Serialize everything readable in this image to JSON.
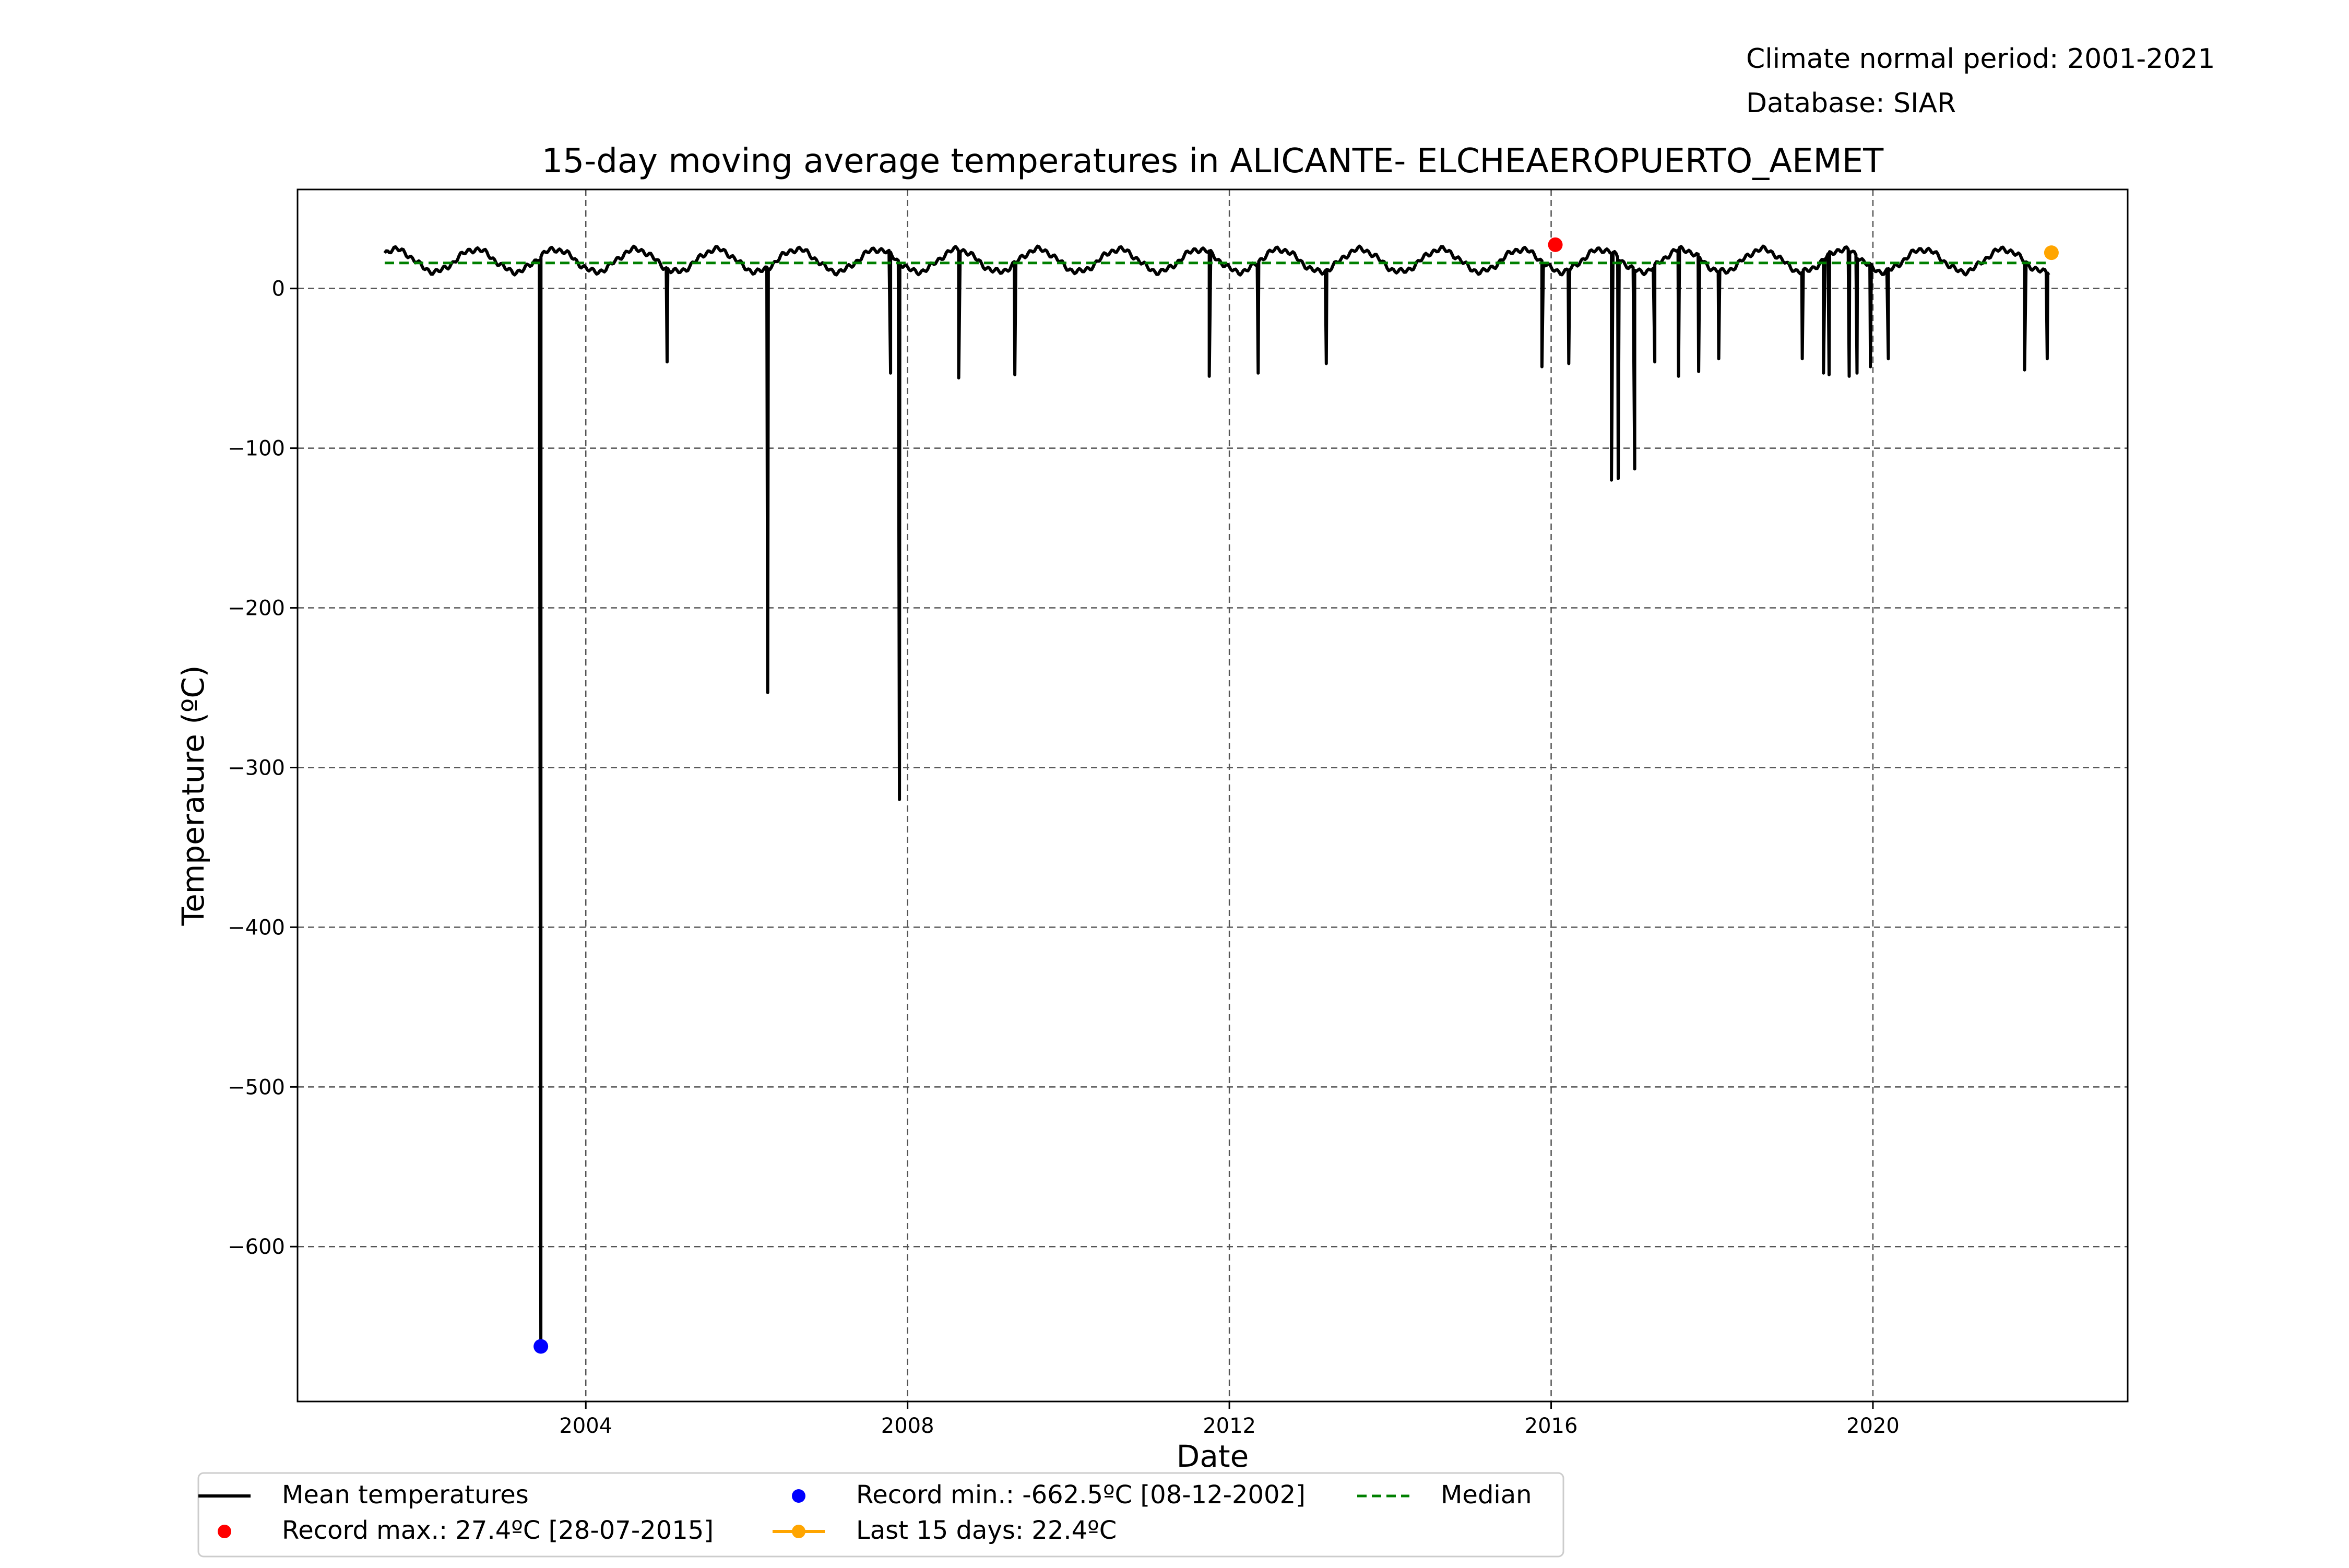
{
  "header": {
    "period": "Climate normal period: 2001-2021",
    "database": "Database: SIAR"
  },
  "chart_data": {
    "type": "line",
    "title": "15-day moving average temperatures in ALICANTE- ELCHEAEROPUERTO_AEMET",
    "xlabel": "Date",
    "ylabel": "Temperature (ºC)",
    "xlim": [
      "2000-06-01",
      "2023-03-01"
    ],
    "ylim": [
      -697,
      62
    ],
    "x_ticks": [
      2004,
      2008,
      2012,
      2016,
      2020
    ],
    "y_ticks": [
      0,
      -100,
      -200,
      -300,
      -400,
      -500,
      -600
    ],
    "grid": true,
    "grid_style": "dashed",
    "legend_position": "bottom",
    "colors": {
      "mean": "#000000",
      "median": "#008000",
      "record_max": "#ff0000",
      "record_min": "#0000ff",
      "last": "#ffa500",
      "grid": "#555555"
    },
    "series": [
      {
        "name": "Mean temperatures",
        "style": "line",
        "seasonal": {
          "start": "2001-07-01",
          "end": "2022-03-15",
          "mean": 17.5,
          "amplitude": 7,
          "peak_month": 8
        },
        "dips": [
          {
            "date": "2003-06-10",
            "value": -662.5
          },
          {
            "date": "2005-01-05",
            "value": -46
          },
          {
            "date": "2006-04-05",
            "value": -253
          },
          {
            "date": "2007-10-15",
            "value": -53
          },
          {
            "date": "2007-11-25",
            "value": -320
          },
          {
            "date": "2008-08-20",
            "value": -56
          },
          {
            "date": "2009-05-01",
            "value": -54
          },
          {
            "date": "2011-10-01",
            "value": -55
          },
          {
            "date": "2012-05-10",
            "value": -53
          },
          {
            "date": "2013-03-15",
            "value": -47
          },
          {
            "date": "2015-11-20",
            "value": -49
          },
          {
            "date": "2016-03-20",
            "value": -47
          },
          {
            "date": "2016-10-01",
            "value": -120
          },
          {
            "date": "2016-11-01",
            "value": -119
          },
          {
            "date": "2017-01-15",
            "value": -113
          },
          {
            "date": "2017-04-15",
            "value": -46
          },
          {
            "date": "2017-08-01",
            "value": -55
          },
          {
            "date": "2017-11-01",
            "value": -52
          },
          {
            "date": "2018-02-01",
            "value": -44
          },
          {
            "date": "2019-02-15",
            "value": -44
          },
          {
            "date": "2019-05-20",
            "value": -53
          },
          {
            "date": "2019-06-15",
            "value": -54
          },
          {
            "date": "2019-09-15",
            "value": -55
          },
          {
            "date": "2019-10-20",
            "value": -53
          },
          {
            "date": "2019-12-20",
            "value": -49
          },
          {
            "date": "2020-03-10",
            "value": -44
          },
          {
            "date": "2021-11-20",
            "value": -51
          },
          {
            "date": "2022-03-01",
            "value": -44
          }
        ]
      },
      {
        "name": "Median",
        "style": "dashed",
        "x": [
          "2001-07-01",
          "2022-03-15"
        ],
        "y": [
          16,
          16
        ]
      }
    ],
    "points": [
      {
        "key": "max",
        "name": "Record max.: 27.4ºC [28-07-2015]",
        "date": "2016-01-20",
        "value": 27.4,
        "color": "#ff0000"
      },
      {
        "key": "min",
        "name": "Record min.: -662.5ºC [08-12-2002]",
        "date": "2003-06-10",
        "value": -662.5,
        "color": "#0000ff"
      },
      {
        "key": "last",
        "name": "Last 15 days: 22.4ºC",
        "date": "2022-03-20",
        "value": 22.4,
        "color": "#ffa500"
      }
    ],
    "legend": [
      {
        "key": "mean",
        "label": "Mean temperatures",
        "marker": "line",
        "color": "#000000"
      },
      {
        "key": "max",
        "label": "Record max.: 27.4ºC [28-07-2015]",
        "marker": "dot",
        "color": "#ff0000"
      },
      {
        "key": "min",
        "label": "Record min.: -662.5ºC [08-12-2002]",
        "marker": "dot",
        "color": "#0000ff"
      },
      {
        "key": "last",
        "label": "Last 15 days: 22.4ºC",
        "marker": "line-dot",
        "color": "#ffa500"
      },
      {
        "key": "median",
        "label": "Median",
        "marker": "dashed",
        "color": "#008000"
      }
    ]
  }
}
